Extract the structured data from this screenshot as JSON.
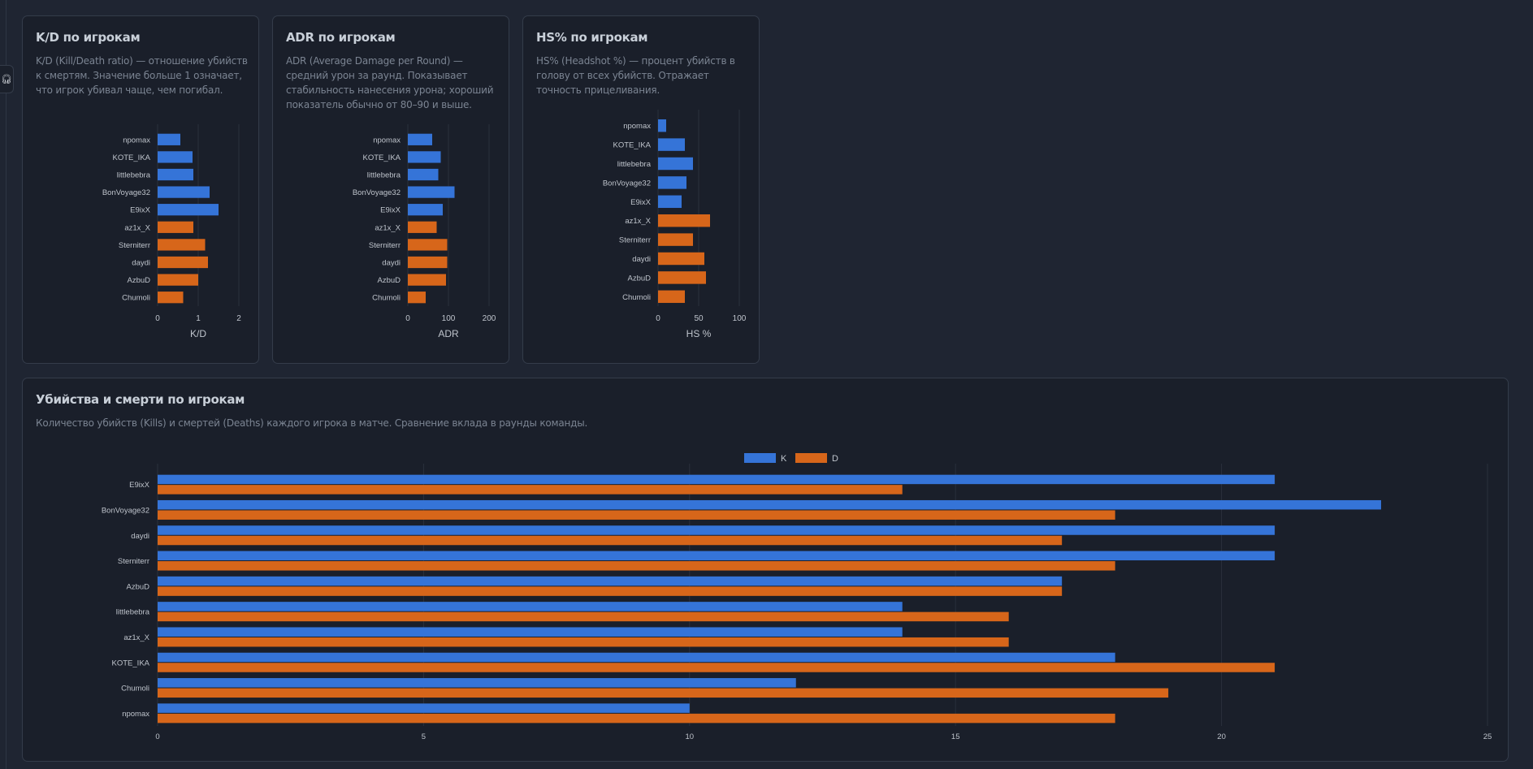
{
  "colors": {
    "kills": "#3574d8",
    "deaths": "#d7661a",
    "background": "#1f2532",
    "card": "#1a1f2a",
    "grid": "#2a303c"
  },
  "side_button": {
    "icon": "headphones-icon"
  },
  "cards": [
    {
      "title": "K/D по игрокам",
      "description": "K/D (Kill/Death ratio) — отношение убийств к смертям. Значение больше 1 означает, что игрок убивал чаще, чем погибал."
    },
    {
      "title": "ADR по игрокам",
      "description": "ADR (Average Damage per Round) — средний урон за раунд. Показывает стабильность нанесения урона; хороший показатель обычно от 80–90 и выше."
    },
    {
      "title": "HS% по игрокам",
      "description": "HS% (Headshot %) — процент убийств в голову от всех убийств. Отражает точность прицеливания."
    },
    {
      "title": "Убийства и смерти по игрокам",
      "description": "Количество убийств (Kills) и смертей (Deaths) каждого игрока в матче. Сравнение вклада в раунды команды."
    }
  ],
  "chart_data": [
    {
      "type": "bar",
      "orientation": "horizontal",
      "categories": [
        "npomax",
        "KOTE_IKA",
        "littlebebra",
        "BonVoyage32",
        "E9ixX",
        "az1x_X",
        "Sterniterr",
        "daydi",
        "AzbuD",
        "Chumoli"
      ],
      "values": [
        0.56,
        0.86,
        0.88,
        1.28,
        1.5,
        0.88,
        1.17,
        1.24,
        1.0,
        0.63
      ],
      "team_colors": [
        "#3574d8",
        "#3574d8",
        "#3574d8",
        "#3574d8",
        "#3574d8",
        "#d7661a",
        "#d7661a",
        "#d7661a",
        "#d7661a",
        "#d7661a"
      ],
      "xlabel": "K/D",
      "xlim": [
        0,
        2
      ],
      "xticks": [
        0,
        1,
        2
      ],
      "grid": true
    },
    {
      "type": "bar",
      "orientation": "horizontal",
      "categories": [
        "npomax",
        "KOTE_IKA",
        "littlebebra",
        "BonVoyage32",
        "E9ixX",
        "az1x_X",
        "Sterniterr",
        "daydi",
        "AzbuD",
        "Chumoli"
      ],
      "values": [
        60,
        81,
        75,
        115,
        86,
        71,
        97,
        97,
        94,
        44
      ],
      "team_colors": [
        "#3574d8",
        "#3574d8",
        "#3574d8",
        "#3574d8",
        "#3574d8",
        "#d7661a",
        "#d7661a",
        "#d7661a",
        "#d7661a",
        "#d7661a"
      ],
      "xlabel": "ADR",
      "xlim": [
        0,
        200
      ],
      "xticks": [
        0,
        100,
        200
      ],
      "grid": true
    },
    {
      "type": "bar",
      "orientation": "horizontal",
      "categories": [
        "npomax",
        "KOTE_IKA",
        "littlebebra",
        "BonVoyage32",
        "E9ixX",
        "az1x_X",
        "Sterniterr",
        "daydi",
        "AzbuD",
        "Chumoli"
      ],
      "values": [
        10,
        33,
        43,
        35,
        29,
        64,
        43,
        57,
        59,
        33
      ],
      "team_colors": [
        "#3574d8",
        "#3574d8",
        "#3574d8",
        "#3574d8",
        "#3574d8",
        "#d7661a",
        "#d7661a",
        "#d7661a",
        "#d7661a",
        "#d7661a"
      ],
      "xlabel": "HS %",
      "xlim": [
        0,
        100
      ],
      "xticks": [
        0,
        50,
        100
      ],
      "grid": true
    },
    {
      "type": "bar",
      "orientation": "horizontal",
      "categories": [
        "E9ixX",
        "BonVoyage32",
        "daydi",
        "Sterniterr",
        "AzbuD",
        "littlebebra",
        "az1x_X",
        "KOTE_IKA",
        "Chumoli",
        "npomax"
      ],
      "series": [
        {
          "name": "K",
          "color": "#3574d8",
          "values": [
            21,
            23,
            21,
            21,
            17,
            14,
            14,
            18,
            12,
            10
          ]
        },
        {
          "name": "D",
          "color": "#d7661a",
          "values": [
            14,
            18,
            17,
            18,
            17,
            16,
            16,
            21,
            19,
            18
          ]
        }
      ],
      "xlim": [
        0,
        25
      ],
      "xticks": [
        0,
        5,
        10,
        15,
        20,
        25
      ],
      "grid": true,
      "legend": "top-center"
    }
  ]
}
